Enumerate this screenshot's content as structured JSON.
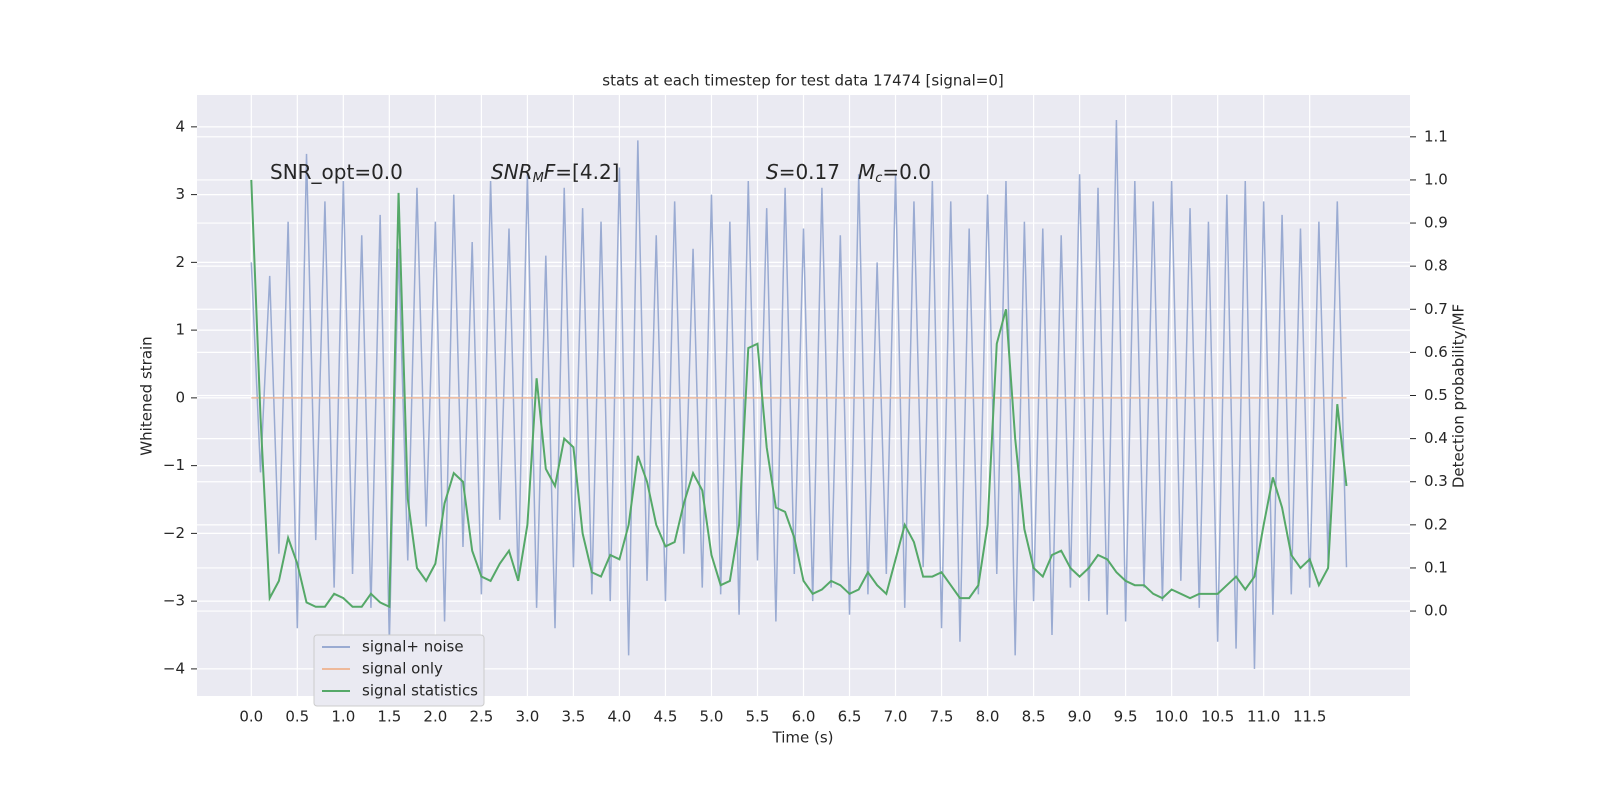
{
  "chart_data": {
    "type": "line",
    "title": "stats at each timestep for test data 17474 [signal=0]",
    "xlabel": "Time (s)",
    "ylabel": "Whitened strain",
    "y2label": "Detection probability/MF",
    "grid": true,
    "background": "#eaeaf2",
    "legend_loc": "lower left",
    "annotations": [
      {
        "parts": [
          {
            "text": "SNR_opt=0.0"
          }
        ]
      },
      {
        "parts": [
          {
            "text": "SNR",
            "italic": true
          },
          {
            "text": "M",
            "italic": true,
            "sub": true
          },
          {
            "text": "F",
            "italic": true
          },
          {
            "text": "=[4.2]"
          }
        ]
      },
      {
        "parts": [
          {
            "text": "S",
            "italic": true
          },
          {
            "text": "=0.17"
          }
        ]
      },
      {
        "parts": [
          {
            "text": "M",
            "italic": true
          },
          {
            "text": "c",
            "italic": true,
            "sub": true
          },
          {
            "text": "=0.0"
          }
        ]
      }
    ],
    "xlim": [
      -0.59,
      12.59
    ],
    "ylim": [
      -4.4,
      4.47
    ],
    "y2lim": [
      -0.197,
      1.197
    ],
    "xticks": [
      {
        "value": 0,
        "label": "0.0"
      },
      0.5,
      {
        "value": 1,
        "label": "1.0"
      },
      1.5,
      {
        "value": 2,
        "label": "2.0"
      },
      2.5,
      {
        "value": 3,
        "label": "3.0"
      },
      3.5,
      {
        "value": 4,
        "label": "4.0"
      },
      4.5,
      {
        "value": 5,
        "label": "5.0"
      },
      5.5,
      {
        "value": 6,
        "label": "6.0"
      },
      6.5,
      {
        "value": 7,
        "label": "7.0"
      },
      7.5,
      {
        "value": 8,
        "label": "8.0"
      },
      8.5,
      {
        "value": 9,
        "label": "9.0"
      },
      9.5,
      {
        "value": 10,
        "label": "10.0"
      },
      10.5,
      {
        "value": 11,
        "label": "11.0"
      },
      11.5
    ],
    "yticks": [
      {
        "value": -4,
        "label": "−4"
      },
      {
        "value": -3,
        "label": "−3"
      },
      {
        "value": -2,
        "label": "−2"
      },
      {
        "value": -1,
        "label": "−1"
      },
      0,
      1,
      2,
      3,
      4
    ],
    "y2ticks": [
      {
        "value": 0,
        "label": "0.0"
      },
      0.1,
      0.2,
      0.3,
      0.4,
      0.5,
      0.6,
      0.7,
      0.8,
      0.9,
      {
        "value": 1,
        "label": "1.0"
      },
      1.1
    ],
    "x": [
      0,
      0.1,
      0.2,
      0.3,
      0.4,
      0.5,
      0.6,
      0.7,
      0.8,
      0.9,
      1,
      1.1,
      1.2,
      1.3,
      1.4,
      1.5,
      1.6,
      1.7,
      1.8,
      1.9,
      2,
      2.1,
      2.2,
      2.3,
      2.4,
      2.5,
      2.6,
      2.7,
      2.8,
      2.9,
      3,
      3.1,
      3.2,
      3.3,
      3.4,
      3.5,
      3.6,
      3.7,
      3.8,
      3.9,
      4,
      4.1,
      4.2,
      4.3,
      4.4,
      4.5,
      4.6,
      4.7,
      4.8,
      4.9,
      5,
      5.1,
      5.2,
      5.3,
      5.4,
      5.5,
      5.6,
      5.7,
      5.8,
      5.9,
      6,
      6.1,
      6.2,
      6.3,
      6.4,
      6.5,
      6.6,
      6.7,
      6.8,
      6.9,
      7,
      7.1,
      7.2,
      7.3,
      7.4,
      7.5,
      7.6,
      7.7,
      7.8,
      7.9,
      8,
      8.1,
      8.2,
      8.3,
      8.4,
      8.5,
      8.6,
      8.7,
      8.8,
      8.9,
      9,
      9.1,
      9.2,
      9.3,
      9.4,
      9.5,
      9.6,
      9.7,
      9.8,
      9.9,
      10,
      10.1,
      10.2,
      10.3,
      10.4,
      10.5,
      10.6,
      10.7,
      10.8,
      10.9,
      11,
      11.1,
      11.2,
      11.3,
      11.4,
      11.5,
      11.6,
      11.7,
      11.8,
      11.9
    ],
    "series": [
      {
        "name": "signal+ noise",
        "color": "#9aabd2",
        "axis": "y",
        "values": [
          2.0,
          -1.1,
          1.8,
          -2.3,
          2.6,
          -3.4,
          3.6,
          -2.1,
          2.9,
          -2.8,
          3.2,
          -2.6,
          2.4,
          -3.1,
          2.7,
          -3.6,
          2.2,
          -2.4,
          3.1,
          -1.9,
          2.6,
          -3.3,
          3.0,
          -2.2,
          2.3,
          -2.9,
          3.2,
          -1.8,
          2.5,
          -2.7,
          3.3,
          -3.1,
          2.1,
          -3.4,
          3.1,
          -2.5,
          2.8,
          -2.9,
          2.6,
          -3.0,
          3.4,
          -3.8,
          3.8,
          -2.7,
          2.4,
          -3.0,
          2.9,
          -2.3,
          2.2,
          -2.8,
          3.0,
          -2.9,
          2.6,
          -3.2,
          3.2,
          -2.4,
          2.8,
          -3.3,
          3.1,
          -2.6,
          2.5,
          -3.0,
          3.1,
          -2.8,
          2.4,
          -3.2,
          3.3,
          -2.9,
          2.0,
          -2.6,
          3.3,
          -3.1,
          2.9,
          -2.5,
          3.2,
          -3.4,
          2.9,
          -3.6,
          2.5,
          -2.9,
          3.0,
          -2.6,
          3.2,
          -3.8,
          2.6,
          -3.0,
          2.5,
          -3.5,
          2.4,
          -2.8,
          3.3,
          -3.0,
          3.1,
          -3.2,
          4.1,
          -3.3,
          3.2,
          -2.8,
          2.9,
          -3.0,
          3.2,
          -2.7,
          2.8,
          -3.1,
          2.6,
          -3.6,
          3.0,
          -3.7,
          3.2,
          -4.0,
          2.9,
          -3.2,
          2.7,
          -2.9,
          2.5,
          -2.8,
          2.6,
          -2.4,
          2.9,
          -2.5
        ]
      },
      {
        "name": "signal only",
        "color": "#eeb99a",
        "axis": "y",
        "values": [
          0,
          0,
          0,
          0,
          0,
          0,
          0,
          0,
          0,
          0,
          0,
          0,
          0,
          0,
          0,
          0,
          0,
          0,
          0,
          0,
          0,
          0,
          0,
          0,
          0,
          0,
          0,
          0,
          0,
          0,
          0,
          0,
          0,
          0,
          0,
          0,
          0,
          0,
          0,
          0,
          0,
          0,
          0,
          0,
          0,
          0,
          0,
          0,
          0,
          0,
          0,
          0,
          0,
          0,
          0,
          0,
          0,
          0,
          0,
          0,
          0,
          0,
          0,
          0,
          0,
          0,
          0,
          0,
          0,
          0,
          0,
          0,
          0,
          0,
          0,
          0,
          0,
          0,
          0,
          0,
          0,
          0,
          0,
          0,
          0,
          0,
          0,
          0,
          0,
          0,
          0,
          0,
          0,
          0,
          0,
          0,
          0,
          0,
          0,
          0,
          0,
          0,
          0,
          0,
          0,
          0,
          0,
          0,
          0,
          0,
          0,
          0,
          0,
          0,
          0,
          0,
          0,
          0,
          0,
          0
        ]
      },
      {
        "name": "signal statistics",
        "color": "#55a868",
        "axis": "y2",
        "values": [
          1.0,
          0.45,
          0.03,
          0.07,
          0.17,
          0.11,
          0.02,
          0.01,
          0.01,
          0.04,
          0.03,
          0.01,
          0.01,
          0.04,
          0.02,
          0.01,
          0.97,
          0.26,
          0.1,
          0.07,
          0.11,
          0.25,
          0.32,
          0.3,
          0.14,
          0.08,
          0.07,
          0.11,
          0.14,
          0.07,
          0.2,
          0.54,
          0.33,
          0.29,
          0.4,
          0.38,
          0.18,
          0.09,
          0.08,
          0.13,
          0.12,
          0.2,
          0.36,
          0.3,
          0.2,
          0.15,
          0.16,
          0.25,
          0.32,
          0.28,
          0.13,
          0.06,
          0.07,
          0.2,
          0.61,
          0.62,
          0.38,
          0.24,
          0.23,
          0.17,
          0.07,
          0.04,
          0.05,
          0.07,
          0.06,
          0.04,
          0.05,
          0.09,
          0.06,
          0.04,
          0.12,
          0.2,
          0.16,
          0.08,
          0.08,
          0.09,
          0.06,
          0.03,
          0.03,
          0.06,
          0.2,
          0.62,
          0.7,
          0.4,
          0.19,
          0.1,
          0.08,
          0.13,
          0.14,
          0.1,
          0.08,
          0.1,
          0.13,
          0.12,
          0.09,
          0.07,
          0.06,
          0.06,
          0.04,
          0.03,
          0.05,
          0.04,
          0.03,
          0.04,
          0.04,
          0.04,
          0.06,
          0.08,
          0.05,
          0.08,
          0.2,
          0.31,
          0.24,
          0.13,
          0.1,
          0.12,
          0.06,
          0.1,
          0.48,
          0.29
        ]
      }
    ]
  }
}
